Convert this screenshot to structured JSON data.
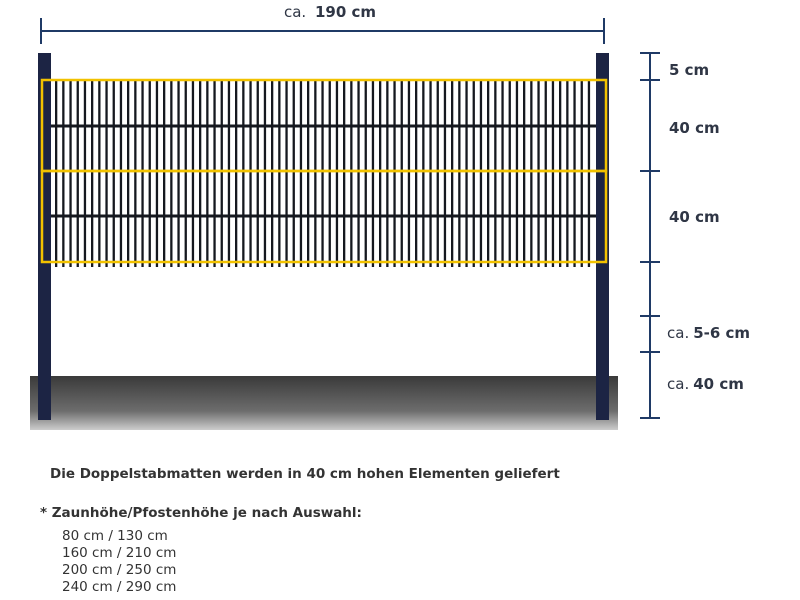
{
  "width_label": {
    "prefix": "ca.",
    "value": "190 cm"
  },
  "height_labels": [
    {
      "id": "top-gap",
      "prefix": "",
      "value": "5 cm"
    },
    {
      "id": "element-1",
      "prefix": "",
      "value": "40 cm"
    },
    {
      "id": "element-2",
      "prefix": "",
      "value": "40 cm"
    },
    {
      "id": "ground-gap",
      "prefix": "ca.",
      "value": "5-6 cm"
    },
    {
      "id": "post-depth",
      "prefix": "ca.",
      "value": "40 cm"
    }
  ],
  "caption": "Die Doppelstabmatten werden in 40 cm hohen Elementen geliefert",
  "options": {
    "title": "* Zaunhöhe/Pfostenhöhe je nach Auswahl:",
    "items": [
      "80 cm / 130 cm",
      "160 cm / 210 cm",
      "200 cm / 250 cm",
      "240 cm / 290 cm"
    ]
  },
  "colors": {
    "dimension": "#1f3a66",
    "post": "#1c2444",
    "mesh": "#15181f",
    "highlight": "#f2c200",
    "ground": "#4a4a4a"
  }
}
